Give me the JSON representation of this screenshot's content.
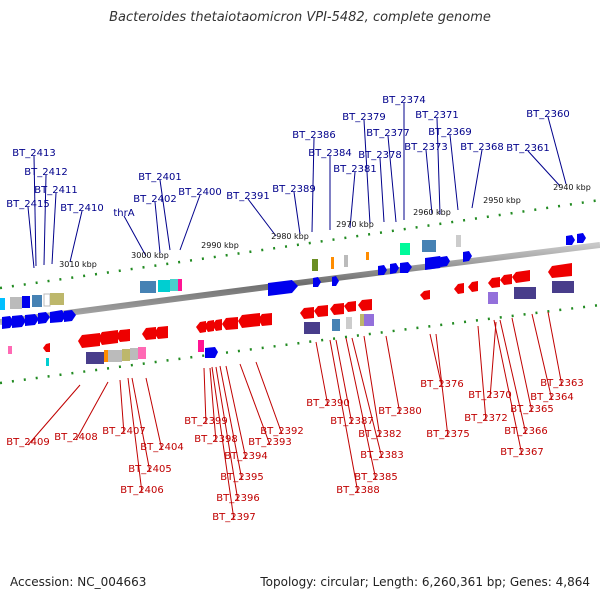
{
  "title": "Bacteroides thetaiotaomicron VPI-5482, complete genome",
  "accession": "Accession: NC_004663",
  "summary": "Topology: circular; Length: 6,260,361 bp; Genes: 4,864",
  "scale_labels": [
    "3010 kbp",
    "3000 kbp",
    "2990 kbp",
    "2980 kbp",
    "2970 kbp",
    "2960 kbp",
    "2950 kbp",
    "2940 kbp"
  ],
  "top_labels": [
    "BT_2413",
    "BT_2412",
    "BT_2411",
    "BT_2415",
    "BT_2410",
    "thrA",
    "BT_2402",
    "BT_2401",
    "BT_2400",
    "BT_2391",
    "BT_2389",
    "BT_2386",
    "BT_2384",
    "BT_2381",
    "BT_2379",
    "BT_2378",
    "BT_2377",
    "BT_2374",
    "BT_2373",
    "BT_2371",
    "BT_2369",
    "BT_2368",
    "BT_2361",
    "BT_2360"
  ],
  "bottom_labels": [
    "BT_2409",
    "BT_2408",
    "BT_2407",
    "BT_2405",
    "BT_2406",
    "BT_2404",
    "BT_2399",
    "BT_2398",
    "BT_2396",
    "BT_2397",
    "BT_2395",
    "BT_2394",
    "BT_2393",
    "BT_2392",
    "BT_2390",
    "BT_2387",
    "BT_2388",
    "BT_2385",
    "BT_2383",
    "BT_2382",
    "BT_2380",
    "BT_2376",
    "BT_2375",
    "BT_2372",
    "BT_2370",
    "BT_2366",
    "BT_2367",
    "BT_2365",
    "BT_2364",
    "BT_2363"
  ],
  "colors": {
    "forward_strand": "#0000ee",
    "reverse_strand": "#ee0000",
    "top_label": "#00008b",
    "bottom_label": "#c00000",
    "backbone": "#808080",
    "tick": "#228b22"
  }
}
